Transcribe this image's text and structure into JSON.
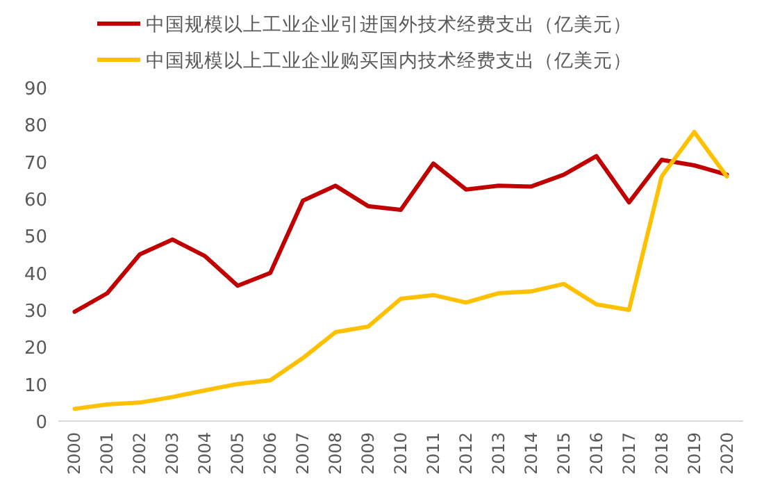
{
  "chart_data": {
    "type": "line",
    "categories": [
      "2000",
      "2001",
      "2002",
      "2003",
      "2004",
      "2005",
      "2006",
      "2007",
      "2008",
      "2009",
      "2010",
      "2011",
      "2012",
      "2013",
      "2014",
      "2015",
      "2016",
      "2017",
      "2018",
      "2019",
      "2020"
    ],
    "series": [
      {
        "name": "中国规模以上工业企业引进国外技术经费支出（亿美元）",
        "color": "#c00000",
        "values": [
          29.5,
          34.5,
          45,
          49,
          44.5,
          36.5,
          40,
          59.5,
          63.5,
          58,
          57,
          69.5,
          62.5,
          63.5,
          63.3,
          66.5,
          71.5,
          59,
          70.5,
          69,
          66.5
        ]
      },
      {
        "name": "中国规模以上工业企业购买国内技术经费支出（亿美元）",
        "color": "#ffc000",
        "values": [
          3.3,
          4.5,
          5,
          6.5,
          8.3,
          10,
          11,
          17,
          24,
          25.5,
          33,
          34,
          32,
          34.5,
          35,
          37,
          31.5,
          30,
          66,
          78,
          66
        ]
      }
    ],
    "ylim": [
      0,
      90
    ],
    "yticks": [
      0,
      10,
      20,
      30,
      40,
      50,
      60,
      70,
      80,
      90
    ],
    "grid": false,
    "legend": "top",
    "marker": "none",
    "line_style": "solid"
  }
}
